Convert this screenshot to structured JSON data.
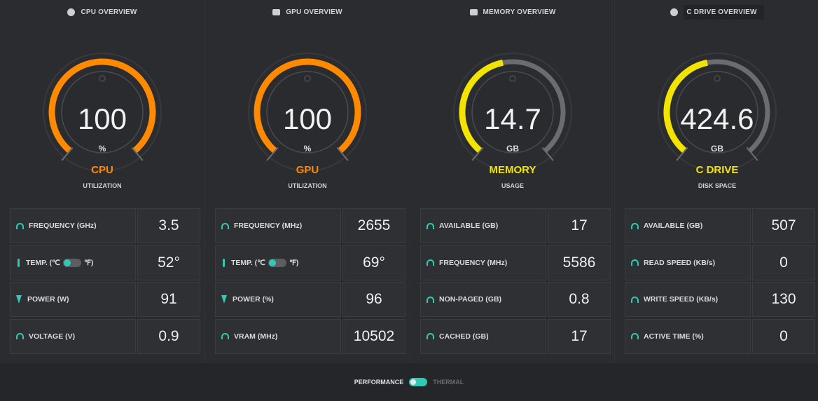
{
  "colors": {
    "orange": "#ff8a00",
    "yellow": "#f2e400",
    "teal": "#2fc9b4",
    "track": "#6b6c70"
  },
  "panels": [
    {
      "header": "CPU OVERVIEW",
      "icon": "cpu-icon",
      "gauge": {
        "value": "100",
        "unit": "%",
        "label": "CPU",
        "sub": "UTILIZATION",
        "fill": 1.0,
        "color": "#ff8a00"
      },
      "rows": [
        {
          "icon": "gauge-icon",
          "label": "FREQUENCY (GHz)",
          "value": "3.5"
        },
        {
          "icon": "thermometer-icon",
          "label": "TEMP. (℃",
          "label_suffix": "℉)",
          "value": "52°"
        },
        {
          "icon": "bolt-icon",
          "label": "POWER (W)",
          "value": "91"
        },
        {
          "icon": "gauge-icon",
          "label": "VOLTAGE (V)",
          "value": "0.9"
        }
      ]
    },
    {
      "header": "GPU OVERVIEW",
      "icon": "gpu-icon",
      "gauge": {
        "value": "100",
        "unit": "%",
        "label": "GPU",
        "sub": "UTILIZATION",
        "fill": 1.0,
        "color": "#ff8a00"
      },
      "rows": [
        {
          "icon": "gauge-icon",
          "label": "FREQUENCY (MHz)",
          "value": "2655"
        },
        {
          "icon": "thermometer-icon",
          "label": "TEMP. (℃",
          "label_suffix": "℉)",
          "value": "69°"
        },
        {
          "icon": "bolt-icon",
          "label": "POWER (%)",
          "value": "96"
        },
        {
          "icon": "gauge-icon",
          "label": "VRAM (MHz)",
          "value": "10502"
        }
      ]
    },
    {
      "header": "MEMORY OVERVIEW",
      "icon": "memory-icon",
      "gauge": {
        "value": "14.7",
        "unit": "GB",
        "label": "MEMORY",
        "sub": "USAGE",
        "fill": 0.46,
        "color": "#f2e400"
      },
      "rows": [
        {
          "icon": "gauge-icon",
          "label": "AVAILABLE (GB)",
          "value": "17"
        },
        {
          "icon": "gauge-icon",
          "label": "FREQUENCY (MHz)",
          "value": "5586"
        },
        {
          "icon": "gauge-icon",
          "label": "NON-PAGED (GB)",
          "value": "0.8"
        },
        {
          "icon": "gauge-icon",
          "label": "CACHED (GB)",
          "value": "17"
        }
      ]
    },
    {
      "header": "C DRIVE OVERVIEW",
      "icon": "drive-icon",
      "gauge": {
        "value": "424.6",
        "unit": "GB",
        "label": "C DRIVE",
        "sub": "DISK SPACE",
        "fill": 0.46,
        "color": "#f2e400"
      },
      "rows": [
        {
          "icon": "gauge-icon",
          "label": "AVAILABLE (GB)",
          "value": "507"
        },
        {
          "icon": "gauge-icon",
          "label": "READ SPEED (KB/s)",
          "value": "0"
        },
        {
          "icon": "gauge-icon",
          "label": "WRITE SPEED (KB/s)",
          "value": "130"
        },
        {
          "icon": "gauge-icon",
          "label": "ACTIVE TIME (%)",
          "value": "0"
        }
      ]
    }
  ],
  "footer": {
    "left_label": "PERFORMANCE",
    "right_label": "THERMAL"
  }
}
